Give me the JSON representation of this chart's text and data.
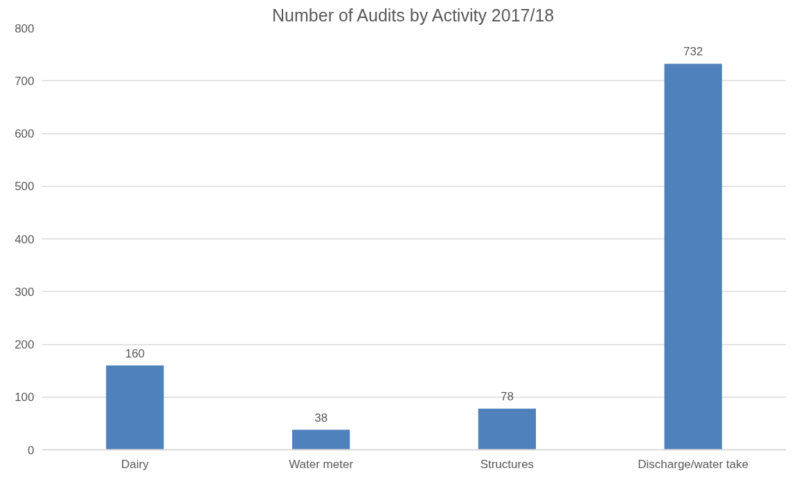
{
  "chart_data": {
    "type": "bar",
    "title": "Number of Audits by Activity 2017/18",
    "categories": [
      "Dairy",
      "Water meter",
      "Structures",
      "Discharge/water take"
    ],
    "values": [
      160,
      38,
      78,
      732
    ],
    "color": "#4f81bd",
    "ylim": [
      0,
      800
    ],
    "yticks": [
      0,
      100,
      200,
      300,
      400,
      500,
      600,
      700,
      800
    ],
    "grid": "y",
    "data_labels": true
  }
}
